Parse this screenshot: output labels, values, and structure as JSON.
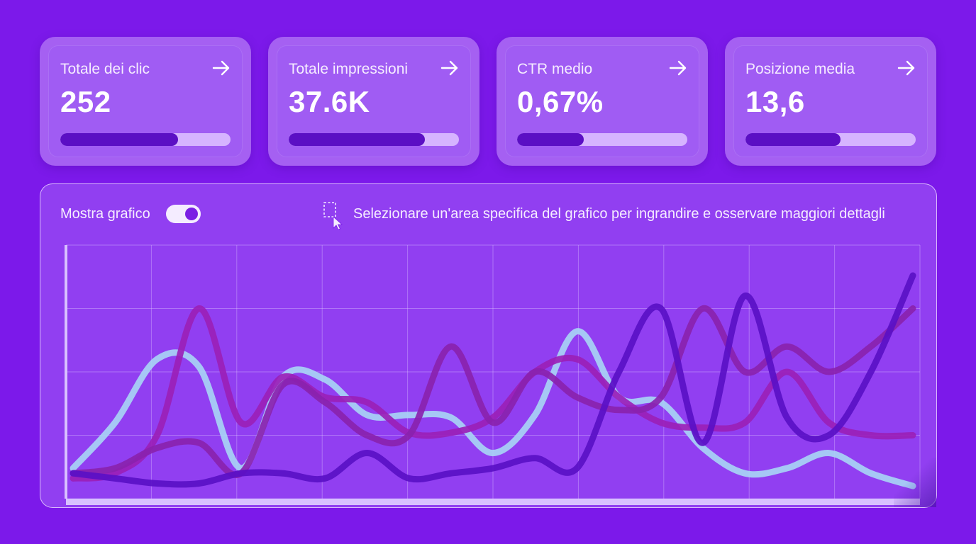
{
  "cards": [
    {
      "title": "Totale dei clic",
      "value": "252",
      "progress": 0.69
    },
    {
      "title": "Totale impressioni",
      "value": "37.6K",
      "progress": 0.8
    },
    {
      "title": "CTR medio",
      "value": "0,67%",
      "progress": 0.39
    },
    {
      "title": "Posizione media",
      "value": "13,6",
      "progress": 0.56
    }
  ],
  "chart_panel": {
    "toggle_label": "Mostra grafico",
    "toggle_on": true,
    "hint": "Selezionare un'area specifica del grafico per ingrandire e osservare maggiori dettagli"
  },
  "icons": {
    "card_arrow": "arrow-right-icon",
    "select": "area-select-icon"
  },
  "colors": {
    "background": "#7c19ea",
    "progress_fill": "#5b0fc4",
    "progress_track": "#d6b4ff"
  },
  "chart_data": {
    "type": "line",
    "x": [
      0,
      1,
      2,
      3,
      4,
      5,
      6,
      7,
      8,
      9,
      10,
      11,
      12,
      13,
      14,
      15,
      16,
      17,
      18,
      19,
      20
    ],
    "ylim": [
      0,
      100
    ],
    "grid": true,
    "series": [
      {
        "color": "#a8d2f5",
        "values": [
          12,
          30,
          55,
          52,
          12,
          48,
          47,
          33,
          33,
          32,
          18,
          33,
          66,
          40,
          38,
          20,
          10,
          12,
          18,
          10,
          5
        ]
      },
      {
        "color": "#9b1fb7",
        "values": [
          8,
          10,
          25,
          75,
          30,
          48,
          40,
          38,
          26,
          26,
          32,
          50,
          55,
          40,
          30,
          28,
          30,
          50,
          30,
          25,
          25
        ]
      },
      {
        "color": "#8a22ae",
        "values": [
          10,
          12,
          20,
          22,
          10,
          45,
          38,
          25,
          25,
          60,
          30,
          50,
          40,
          35,
          40,
          75,
          50,
          60,
          50,
          60,
          75
        ]
      },
      {
        "color": "#5a10c6",
        "values": [
          10,
          8,
          6,
          6,
          10,
          10,
          8,
          18,
          8,
          10,
          12,
          16,
          12,
          50,
          75,
          22,
          80,
          32,
          25,
          50,
          88
        ]
      }
    ]
  }
}
